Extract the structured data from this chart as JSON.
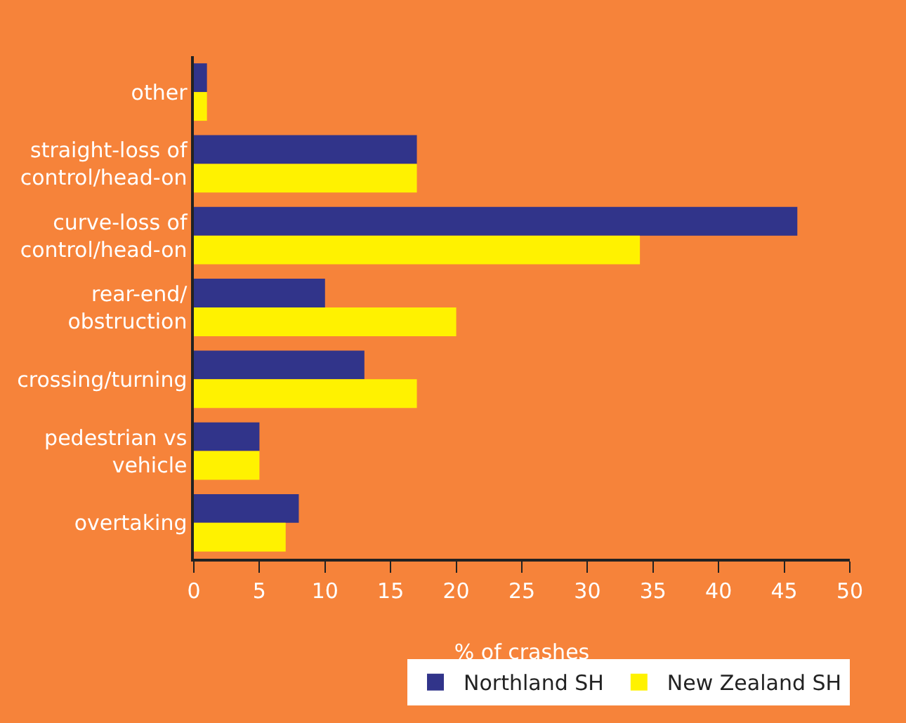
{
  "chart_data": {
    "type": "bar",
    "orientation": "horizontal",
    "xlabel": "% of crashes",
    "categories": [
      "other",
      "straight-loss of\ncontrol/head-on",
      "curve-loss of\ncontrol/head-on",
      "rear-end/\nobstruction",
      "crossing/turning",
      "pedestrian vs\nvehicle",
      "overtaking"
    ],
    "series": [
      {
        "name": "Northland SH",
        "color": "#31348a",
        "values": [
          1,
          17,
          46,
          10,
          13,
          5,
          8
        ]
      },
      {
        "name": "New Zealand SH",
        "color": "#fff200",
        "values": [
          1,
          17,
          34,
          20,
          17,
          5,
          7
        ]
      }
    ],
    "xlim": [
      0,
      50
    ],
    "xticks": [
      0,
      5,
      10,
      15,
      20,
      25,
      30,
      35,
      40,
      45,
      50
    ],
    "grid": false,
    "legend": "bottom"
  }
}
